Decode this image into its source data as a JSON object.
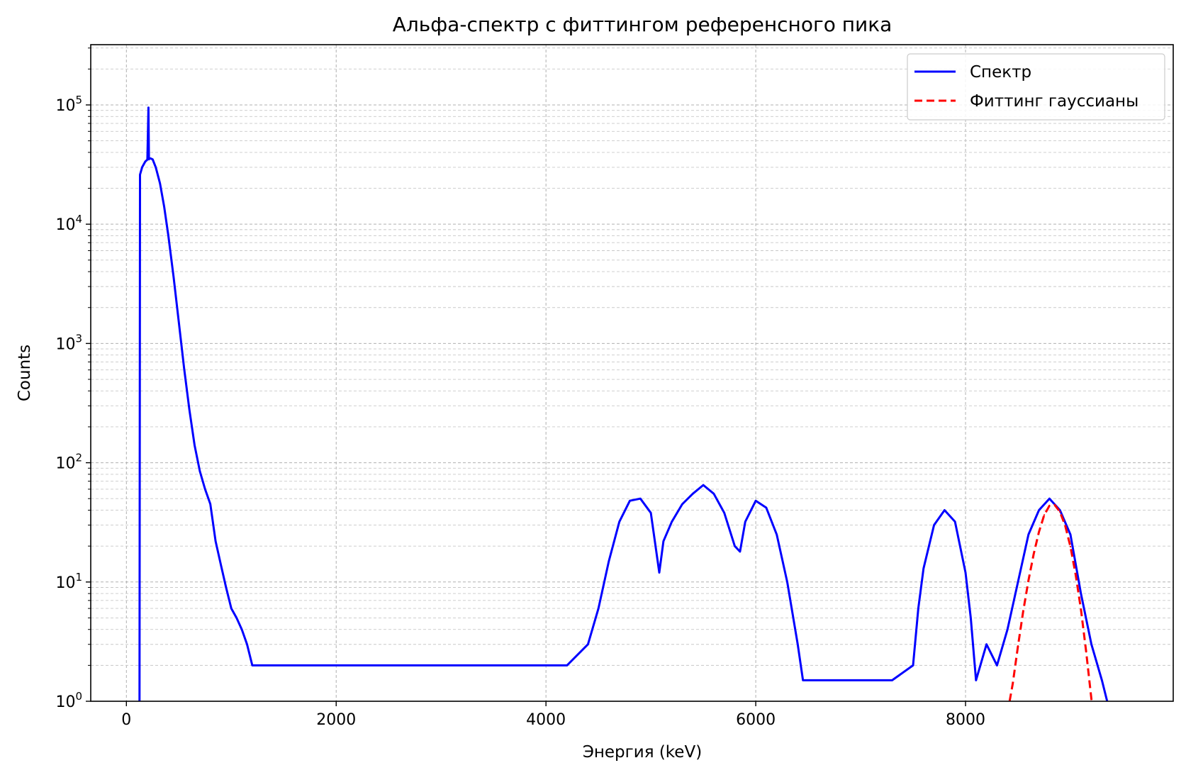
{
  "chart_data": {
    "type": "line",
    "title": "Альфа-спектр с фиттингом референсного пика",
    "xlabel": "Энергия (keV)",
    "ylabel": "Counts",
    "xlim": [
      -340,
      9980
    ],
    "ylim": [
      1,
      320000
    ],
    "yscale": "log",
    "grid": "both",
    "legend_position": "top-right",
    "x_ticks": [
      {
        "value": 0,
        "label": "0"
      },
      {
        "value": 2000,
        "label": "2000"
      },
      {
        "value": 4000,
        "label": "4000"
      },
      {
        "value": 6000,
        "label": "6000"
      },
      {
        "value": 8000,
        "label": "8000"
      }
    ],
    "y_ticks": [
      {
        "value": 1,
        "base": "10",
        "exp": "0"
      },
      {
        "value": 10,
        "base": "10",
        "exp": "1"
      },
      {
        "value": 100,
        "base": "10",
        "exp": "2"
      },
      {
        "value": 1000,
        "base": "10",
        "exp": "3"
      },
      {
        "value": 10000,
        "base": "10",
        "exp": "4"
      },
      {
        "value": 100000,
        "base": "10",
        "exp": "5"
      }
    ],
    "series": [
      {
        "name": "Спектр",
        "color": "#0000ff",
        "style": "solid",
        "x": [
          120,
          125,
          130,
          150,
          180,
          200,
          210,
          215,
          220,
          230,
          250,
          280,
          320,
          360,
          400,
          450,
          500,
          550,
          600,
          650,
          700,
          750,
          800,
          850,
          900,
          950,
          1000,
          1050,
          1100,
          1150,
          1200,
          1400,
          1600,
          1800,
          2000,
          2200,
          2400,
          2600,
          2800,
          3000,
          3200,
          3400,
          3600,
          3800,
          4000,
          4200,
          4400,
          4500,
          4600,
          4700,
          4800,
          4900,
          5000,
          5080,
          5120,
          5200,
          5300,
          5400,
          5500,
          5600,
          5700,
          5800,
          5850,
          5900,
          6000,
          6100,
          6200,
          6300,
          6400,
          6450,
          6500,
          6700,
          6900,
          7100,
          7300,
          7500,
          7550,
          7600,
          7700,
          7800,
          7900,
          8000,
          8050,
          8100,
          8200,
          8300,
          8400,
          8500,
          8600,
          8700,
          8800,
          8900,
          9000,
          9100,
          9200,
          9300,
          9350
        ],
        "y": [
          1,
          1,
          26000,
          30000,
          33500,
          34800,
          95000,
          35000,
          35500,
          35600,
          35000,
          30000,
          22000,
          14000,
          8000,
          3600,
          1500,
          620,
          280,
          140,
          85,
          60,
          45,
          22,
          14,
          9,
          6,
          5,
          4,
          3,
          2,
          2,
          2,
          2,
          2,
          2,
          2,
          2,
          2,
          2,
          2,
          2,
          2,
          2,
          2,
          2,
          3,
          6,
          15,
          32,
          48,
          50,
          38,
          12,
          22,
          32,
          45,
          55,
          65,
          55,
          38,
          20,
          18,
          32,
          48,
          42,
          25,
          10,
          3,
          1.5,
          1.5,
          1.5,
          1.5,
          1.5,
          1.5,
          2,
          6,
          13,
          30,
          40,
          32,
          12,
          5,
          1.5,
          3,
          2,
          4,
          10,
          25,
          40,
          50,
          40,
          25,
          8,
          3,
          1.5,
          1
        ]
      },
      {
        "name": "Фиттинг гауссианы",
        "color": "#ff0000",
        "style": "dashed",
        "x": [
          8420,
          8450,
          8500,
          8550,
          8600,
          8650,
          8700,
          8750,
          8800,
          8850,
          8900,
          8950,
          9000,
          9050,
          9100,
          9150,
          9200,
          9250
        ],
        "y": [
          1,
          1.4,
          2.9,
          5.7,
          10.3,
          17.2,
          26.3,
          36.4,
          43.6,
          44.2,
          38.7,
          29.7,
          19.8,
          11.5,
          5.9,
          2.6,
          1.04,
          0.35
        ]
      }
    ]
  }
}
